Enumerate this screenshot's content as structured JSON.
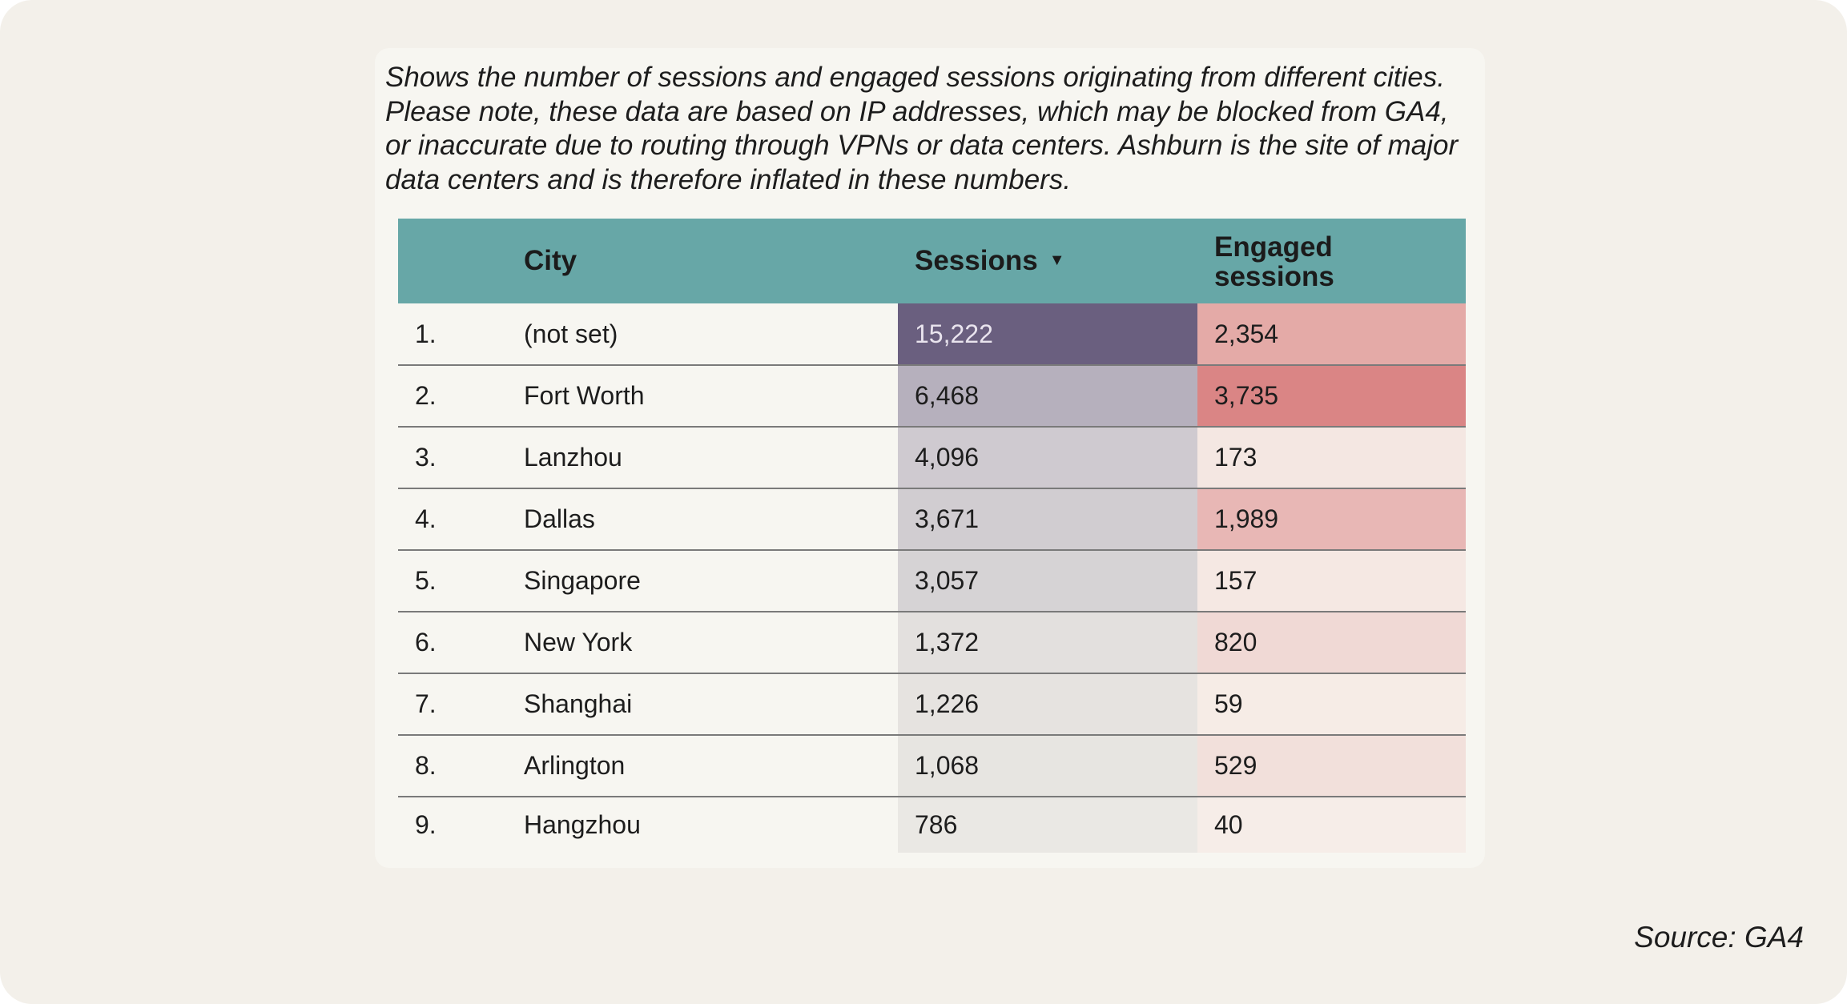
{
  "description": "Shows the number of sessions and engaged sessions originating from different cities. Please note, these data are based on IP addresses, which may be blocked from GA4, or inaccurate due to routing through VPNs or data centers. Ashburn is the site of major data centers and is therefore inflated in these numbers.",
  "table": {
    "headers": {
      "city": "City",
      "sessions": "Sessions",
      "engaged_line1": "Engaged",
      "engaged_line2": "sessions"
    },
    "sort_icon": "▼",
    "sort_column": "sessions",
    "sort_direction": "descending",
    "rows": [
      {
        "index": "1.",
        "city": "(not set)",
        "sessions": "15,222",
        "engaged": "2,354",
        "sessions_bg": "#6a5f7f",
        "engaged_bg": "#e4aaa7",
        "sessions_color": "#e9e4ee"
      },
      {
        "index": "2.",
        "city": "Fort Worth",
        "sessions": "6,468",
        "engaged": "3,735",
        "sessions_bg": "#b6b0bd",
        "engaged_bg": "#da8585",
        "sessions_color": "#1d1d1d"
      },
      {
        "index": "3.",
        "city": "Lanzhou",
        "sessions": "4,096",
        "engaged": "173",
        "sessions_bg": "#cfcad0",
        "engaged_bg": "#f4e7e2",
        "sessions_color": "#1d1d1d"
      },
      {
        "index": "4.",
        "city": "Dallas",
        "sessions": "3,671",
        "engaged": "1,989",
        "sessions_bg": "#d1cdd1",
        "engaged_bg": "#e8b7b5",
        "sessions_color": "#1d1d1d"
      },
      {
        "index": "5.",
        "city": "Singapore",
        "sessions": "3,057",
        "engaged": "157",
        "sessions_bg": "#d6d3d5",
        "engaged_bg": "#f5e8e3",
        "sessions_color": "#1d1d1d"
      },
      {
        "index": "6.",
        "city": "New York",
        "sessions": "1,372",
        "engaged": "820",
        "sessions_bg": "#e3e0de",
        "engaged_bg": "#f0d9d5",
        "sessions_color": "#1d1d1d"
      },
      {
        "index": "7.",
        "city": "Shanghai",
        "sessions": "1,226",
        "engaged": "59",
        "sessions_bg": "#e6e3e0",
        "engaged_bg": "#f6ece6",
        "sessions_color": "#1d1d1d"
      },
      {
        "index": "8.",
        "city": "Arlington",
        "sessions": "1,068",
        "engaged": "529",
        "sessions_bg": "#e7e5e1",
        "engaged_bg": "#f2e0db",
        "sessions_color": "#1d1d1d"
      },
      {
        "index": "9.",
        "city": "Hangzhou",
        "sessions": "786",
        "engaged": "40",
        "sessions_bg": "#eae8e4",
        "engaged_bg": "#f6ede8",
        "sessions_color": "#1d1d1d"
      }
    ]
  },
  "source": "Source: GA4"
}
